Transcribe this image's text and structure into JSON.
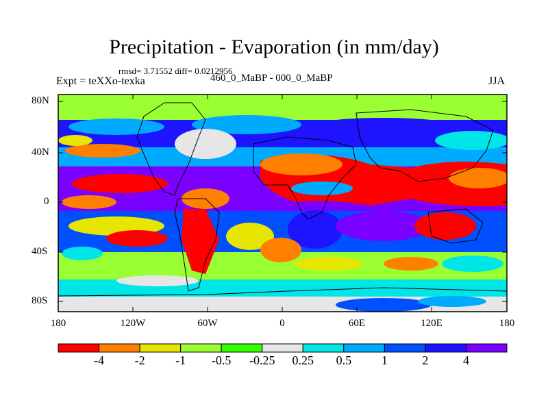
{
  "title": "Precipitation - Evaporation (in mm/day)",
  "stats": "rmsd= 3.71552 diff= 0.0212956",
  "experiment": "Expt = teXXo-texka",
  "comparison": "460_0_MaBP - 000_0_MaBP",
  "season": "JJA",
  "y_axis_labels": [
    "80N",
    "40N",
    "0",
    "40S",
    "80S"
  ],
  "x_axis_labels": [
    "180",
    "120W",
    "60W",
    "0",
    "60E",
    "120E",
    "180"
  ],
  "colorbar": {
    "colors": [
      "#ff0000",
      "#ff8000",
      "#e6e600",
      "#99ff33",
      "#33ff00",
      "#e6e6e6",
      "#00e6e6",
      "#00aaff",
      "#0050ff",
      "#1e14ff",
      "#7a00ff"
    ],
    "labels": [
      "-4",
      "-2",
      "-1",
      "-0.5",
      "-0.25",
      "0.25",
      "0.5",
      "1",
      "2",
      "4"
    ]
  }
}
